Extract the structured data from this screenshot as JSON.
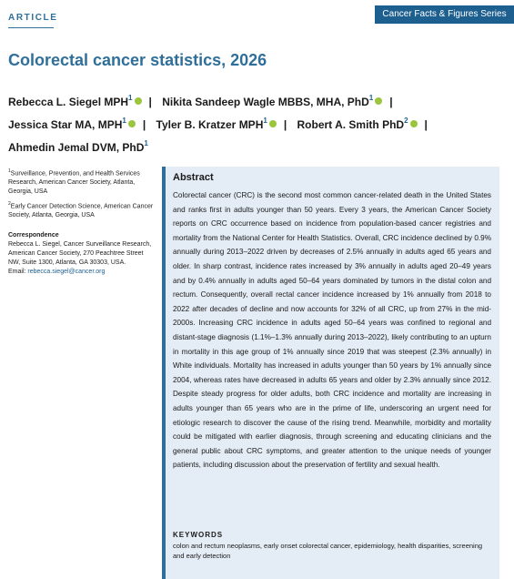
{
  "header": {
    "article_label": "ARTICLE",
    "series": "Cancer Facts & Figures Series"
  },
  "title": "Colorectal cancer statistics, 2026",
  "authors": [
    {
      "name": "Rebecca L. Siegel MPH",
      "sup": "1"
    },
    {
      "name": "Nikita Sandeep Wagle MBBS, MHA, PhD",
      "sup": "1"
    },
    {
      "name": "Jessica Star MA, MPH",
      "sup": "1"
    },
    {
      "name": "Tyler B. Kratzer MPH",
      "sup": "1"
    },
    {
      "name": "Robert A. Smith PhD",
      "sup": "2"
    },
    {
      "name": "Ahmedin Jemal DVM, PhD",
      "sup": "1"
    }
  ],
  "affiliations": [
    {
      "sup": "1",
      "text": "Surveillance, Prevention, and Health Services Research, American Cancer Society, Atlanta, Georgia, USA"
    },
    {
      "sup": "2",
      "text": "Early Cancer Detection Science, American Cancer Society, Atlanta, Georgia, USA"
    }
  ],
  "correspondence": {
    "heading": "Correspondence",
    "text": "Rebecca L. Siegel, Cancer Surveillance Research, American Cancer Society, 270 Peachtree Street NW, Suite 1300, Atlanta, GA 30303, USA.",
    "email_label": "Email:",
    "email": "rebecca.siegel@cancer.org"
  },
  "abstract": {
    "heading": "Abstract",
    "text": "Colorectal cancer (CRC) is the second most common cancer-related death in the United States and ranks first in adults younger than 50 years. Every 3 years, the American Cancer Society reports on CRC occurrence based on incidence from population-based cancer registries and mortality from the National Center for Health Statistics. Overall, CRC incidence declined by 0.9% annually during 2013–2022 driven by decreases of 2.5% annually in adults aged 65 years and older. In sharp contrast, incidence rates increased by 3% annually in adults aged 20–49 years and by 0.4% annually in adults aged 50–64 years dominated by tumors in the distal colon and rectum. Consequently, overall rectal cancer incidence increased by 1% annually from 2018 to 2022 after decades of decline and now accounts for 32% of all CRC, up from 27% in the mid-2000s. Increasing CRC incidence in adults aged 50–64 years was confined to regional and distant-stage diagnosis (1.1%–1.3% annually during 2013–2022), likely contributing to an upturn in mortality in this age group of 1% annually since 2019 that was steepest (2.3% annually) in White individuals. Mortality has increased in adults younger than 50 years by 1% annually since 2004, whereas rates have decreased in adults 65 years and older by 2.3% annually since 2012. Despite steady progress for older adults, both CRC incidence and mortality are increasing in adults younger than 65 years who are in the prime of life, underscoring an urgent need for etiologic research to discover the cause of the rising trend. Meanwhile, morbidity and mortality could be mitigated with earlier diagnosis, through screening and educating clinicians and the general public about CRC symptoms, and greater attention to the unique needs of younger patients, including discussion about the preservation of fertility and sexual health."
  },
  "keywords": {
    "heading": "KEYWORDS",
    "text": "colon and rectum neoplasms, early onset colorectal cancer, epidemiology, health disparities, screening and early detection"
  },
  "colors": {
    "accent": "#2f6f99",
    "badge": "#1d5f8f",
    "orcid": "#9bc53d",
    "abstract_bg": "#e4ecf5"
  },
  "icons": {
    "orcid": "orcid-icon"
  }
}
